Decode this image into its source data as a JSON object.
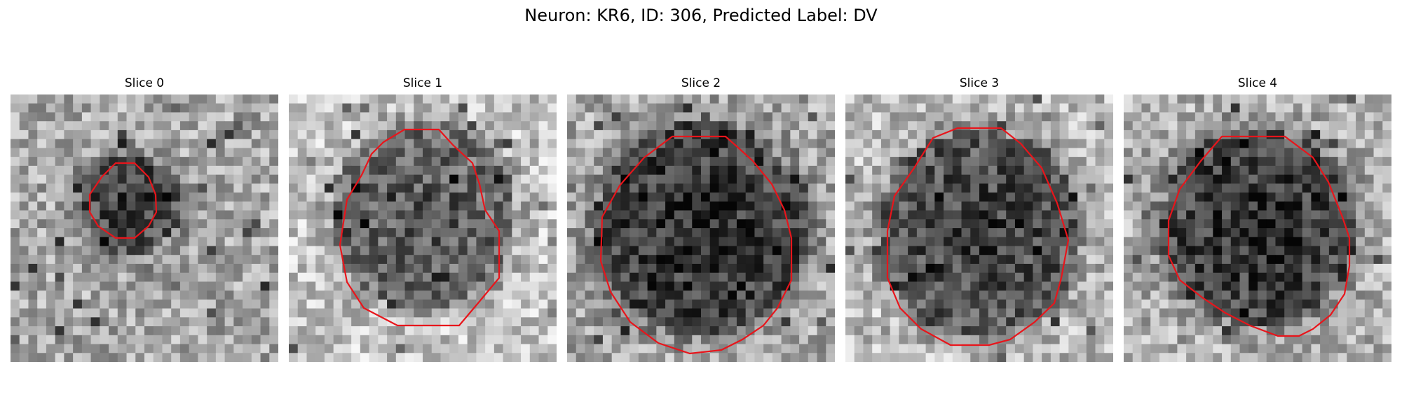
{
  "figure": {
    "title": "Neuron: KR6, ID: 306, Predicted Label: DV"
  },
  "colors": {
    "contour": "#e8151b",
    "background": "#ffffff"
  },
  "panels": [
    {
      "title": "Slice 0"
    },
    {
      "title": "Slice 1"
    },
    {
      "title": "Slice 2"
    },
    {
      "title": "Slice 3"
    },
    {
      "title": "Slice 4"
    }
  ]
}
